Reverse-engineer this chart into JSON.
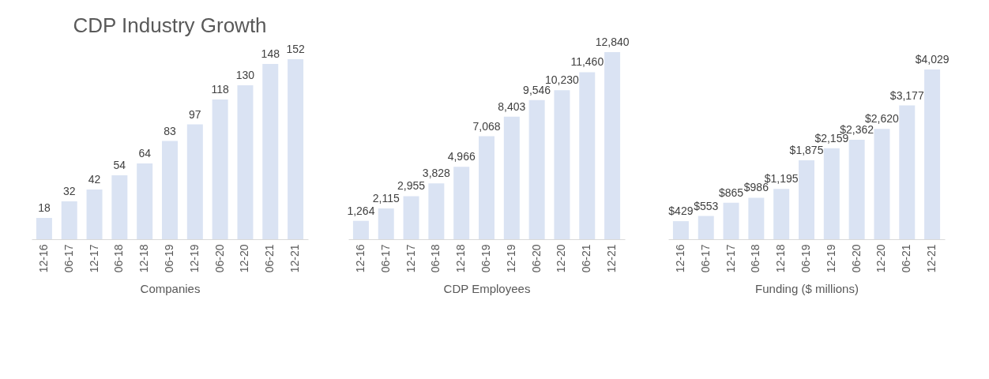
{
  "chart_data": [
    {
      "type": "bar",
      "title": "CDP Industry Growth",
      "xlabel": "Companies",
      "categories": [
        "12-16",
        "06-17",
        "12-17",
        "06-18",
        "12-18",
        "06-19",
        "12-19",
        "06-20",
        "12-20",
        "06-21",
        "12-21"
      ],
      "values": [
        18,
        32,
        42,
        54,
        64,
        83,
        97,
        118,
        130,
        148,
        152
      ],
      "color": "#dae3f3",
      "data_labels": true,
      "grid": false
    },
    {
      "type": "bar",
      "xlabel": "CDP Employees",
      "categories": [
        "12-16",
        "06-17",
        "12-17",
        "06-18",
        "12-18",
        "06-19",
        "12-19",
        "06-20",
        "12-20",
        "06-21",
        "12-21"
      ],
      "values": [
        1264,
        2115,
        2955,
        3828,
        4966,
        7068,
        8403,
        9546,
        10230,
        11460,
        12840
      ],
      "value_labels": [
        "1,264",
        "2,115",
        "2,955",
        "3,828",
        "4,966",
        "7,068",
        "8,403",
        "9,546",
        "10,230",
        "11,460",
        "12,840"
      ],
      "color": "#dae3f3",
      "grid": false
    },
    {
      "type": "bar",
      "xlabel": "Funding ($ millions)",
      "categories": [
        "12-16",
        "06-17",
        "12-17",
        "06-18",
        "12-18",
        "06-19",
        "12-19",
        "06-20",
        "12-20",
        "06-21",
        "12-21"
      ],
      "values": [
        429,
        553,
        865,
        986,
        1195,
        1875,
        2159,
        2362,
        2620,
        3177,
        4029
      ],
      "value_labels": [
        "$429",
        "$553",
        "$865",
        "$986",
        "$1,195",
        "$1,875",
        "$2,159",
        "$2,362",
        "$2,620",
        "$3,177",
        "$4,029"
      ],
      "color": "#dae3f3",
      "grid": false
    }
  ]
}
